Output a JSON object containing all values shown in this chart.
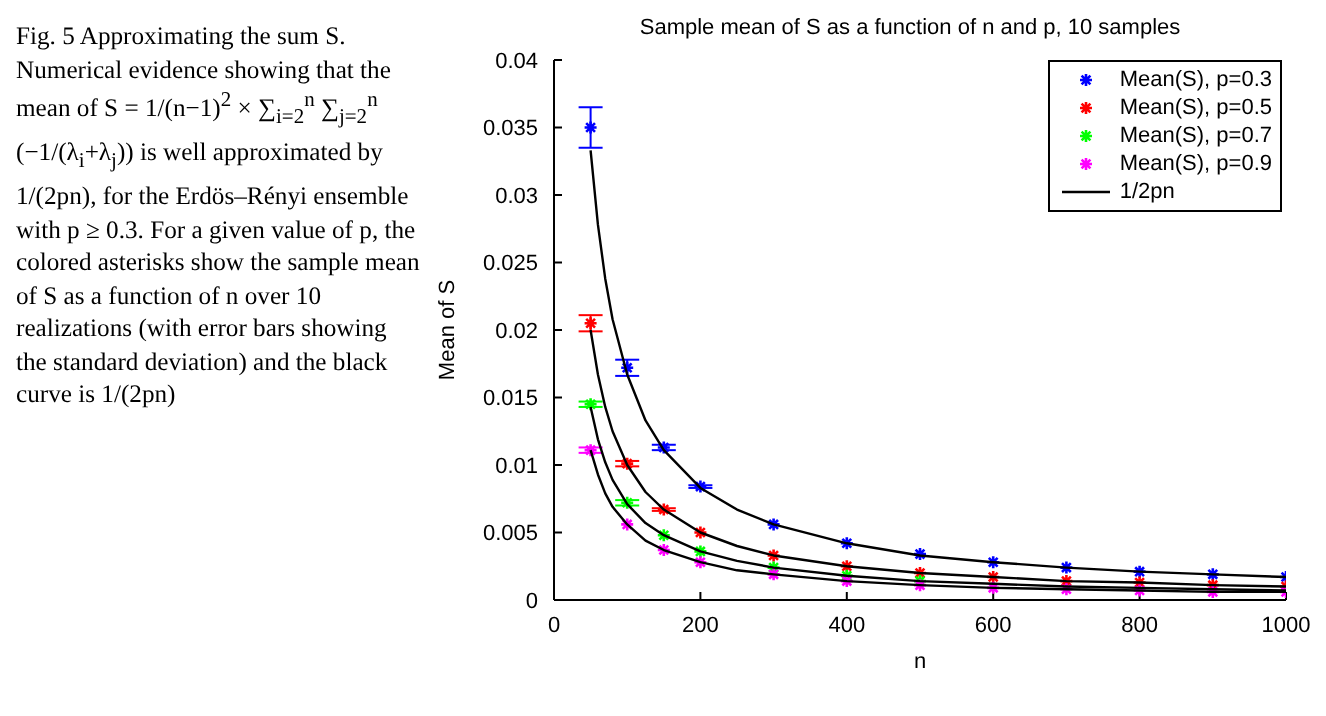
{
  "chart_data": {
    "type": "scatter",
    "title": "Sample mean of S as a function of n and p, 10 samples",
    "xlabel": "n",
    "ylabel": "Mean of S",
    "annotations": [
      "Fig. 5 Approximating the sum S. Numerical evidence showing that the mean of S = 1/(n−1)$^{2}$ × ∑$_{i=2}$$^{n}$ ∑$_{j=2}$$^{n}$ (−1/(λ$_{i}$+λ$_{j}$)) is well approximated by 1/(2pn), for the Erdös–Rényi ensemble with p ≥ 0.3. For a given value of p, the colored asterisks show the sample mean of S as a function of n over 10 realizations (with error bars showing the standard deviation) and the black curve is 1/(2pn)"
    ],
    "xlim": [
      0,
      1000
    ],
    "xticks": [
      0,
      200,
      400,
      600,
      800,
      1000
    ],
    "ylim": [
      0,
      0.04
    ],
    "yticks": [
      0,
      0.005,
      0.01,
      0.015,
      0.02,
      0.025,
      0.03,
      0.035,
      0.04
    ],
    "grid": false,
    "legend": "top right",
    "marker": "cross",
    "series": [
      {
        "name": "Mean(S), p=0.3",
        "color": "#0000ff",
        "x": [
          50,
          100,
          150,
          200,
          300,
          400,
          500,
          600,
          700,
          800,
          900,
          1000
        ],
        "values": [
          0.035,
          0.0172,
          0.0113,
          0.0084,
          0.0056,
          0.0042,
          0.0034,
          0.0028,
          0.0024,
          0.0021,
          0.0019,
          0.0017
        ],
        "errors": [
          0.0015,
          0.0006,
          0.0002,
          0.0001,
          null,
          null,
          null,
          null,
          null,
          null,
          null,
          null
        ]
      },
      {
        "name": "Mean(S), p=0.5",
        "color": "#ff0000",
        "x": [
          50,
          100,
          150,
          200,
          300,
          400,
          500,
          600,
          700,
          800,
          900,
          1000
        ],
        "values": [
          0.0205,
          0.0101,
          0.0067,
          0.005,
          0.0033,
          0.0025,
          0.002,
          0.0017,
          0.0014,
          0.0013,
          0.0011,
          0.001
        ],
        "errors": [
          0.0006,
          0.0002,
          0.0001,
          null,
          null,
          null,
          null,
          null,
          null,
          null,
          null,
          null
        ]
      },
      {
        "name": "Mean(S), p=0.7",
        "color": "#00ff00",
        "x": [
          50,
          100,
          150,
          200,
          300,
          400,
          500
        ],
        "values": [
          0.0145,
          0.0072,
          0.0048,
          0.0036,
          0.0024,
          0.0018,
          0.0014
        ],
        "errors": [
          0.0002,
          0.0002,
          null,
          null,
          null,
          null,
          null
        ]
      },
      {
        "name": "Mean(S), p=0.9",
        "color": "#ff00ff",
        "x": [
          50,
          100,
          150,
          200,
          300,
          400,
          500,
          600,
          700,
          800,
          900,
          1000
        ],
        "values": [
          0.0111,
          0.0056,
          0.0037,
          0.0028,
          0.0019,
          0.0014,
          0.0011,
          0.0009,
          0.0008,
          0.0007,
          0.0006,
          0.0006
        ],
        "errors": [
          0.0002,
          null,
          null,
          null,
          null,
          null,
          null,
          null,
          null,
          null,
          null,
          null
        ]
      },
      {
        "name": "1/2pn",
        "type": "line",
        "marker": "none",
        "color": "#000000",
        "x": [
          50,
          60,
          70,
          80,
          100,
          125,
          150,
          200,
          250,
          300,
          400,
          500,
          600,
          700,
          800,
          900,
          1000
        ],
        "values": [
          0.0333,
          0.0278,
          0.0238,
          0.0208,
          0.0167,
          0.0133,
          0.0111,
          0.0083,
          0.0067,
          0.0056,
          0.0042,
          0.0033,
          0.0028,
          0.0024,
          0.0021,
          0.0019,
          0.0017
        ]
      },
      {
        "type": "line",
        "marker": "none",
        "color": "#000000",
        "x": [
          50,
          60,
          70,
          80,
          100,
          125,
          150,
          200,
          250,
          300,
          400,
          500,
          600,
          700,
          800,
          900,
          1000
        ],
        "values": [
          0.02,
          0.0167,
          0.0143,
          0.0125,
          0.01,
          0.008,
          0.0067,
          0.005,
          0.004,
          0.0033,
          0.0025,
          0.002,
          0.0017,
          0.0014,
          0.0013,
          0.0011,
          0.001
        ]
      },
      {
        "type": "line",
        "marker": "none",
        "color": "#000000",
        "x": [
          50,
          60,
          70,
          80,
          100,
          125,
          150,
          200,
          250,
          300,
          400,
          500,
          600,
          700,
          800,
          900,
          1000
        ],
        "values": [
          0.0143,
          0.0119,
          0.0102,
          0.0089,
          0.0071,
          0.0057,
          0.0048,
          0.0036,
          0.0029,
          0.0024,
          0.0018,
          0.0014,
          0.0012,
          0.001,
          0.0009,
          0.0008,
          0.0007
        ]
      },
      {
        "type": "line",
        "marker": "none",
        "color": "#000000",
        "x": [
          50,
          60,
          70,
          80,
          100,
          125,
          150,
          200,
          250,
          300,
          400,
          500,
          600,
          700,
          800,
          900,
          1000
        ],
        "values": [
          0.0111,
          0.0093,
          0.0079,
          0.0069,
          0.0056,
          0.0044,
          0.0037,
          0.0028,
          0.0022,
          0.0019,
          0.0014,
          0.0011,
          0.0009,
          0.0008,
          0.0007,
          0.0006,
          0.0006
        ]
      }
    ]
  }
}
